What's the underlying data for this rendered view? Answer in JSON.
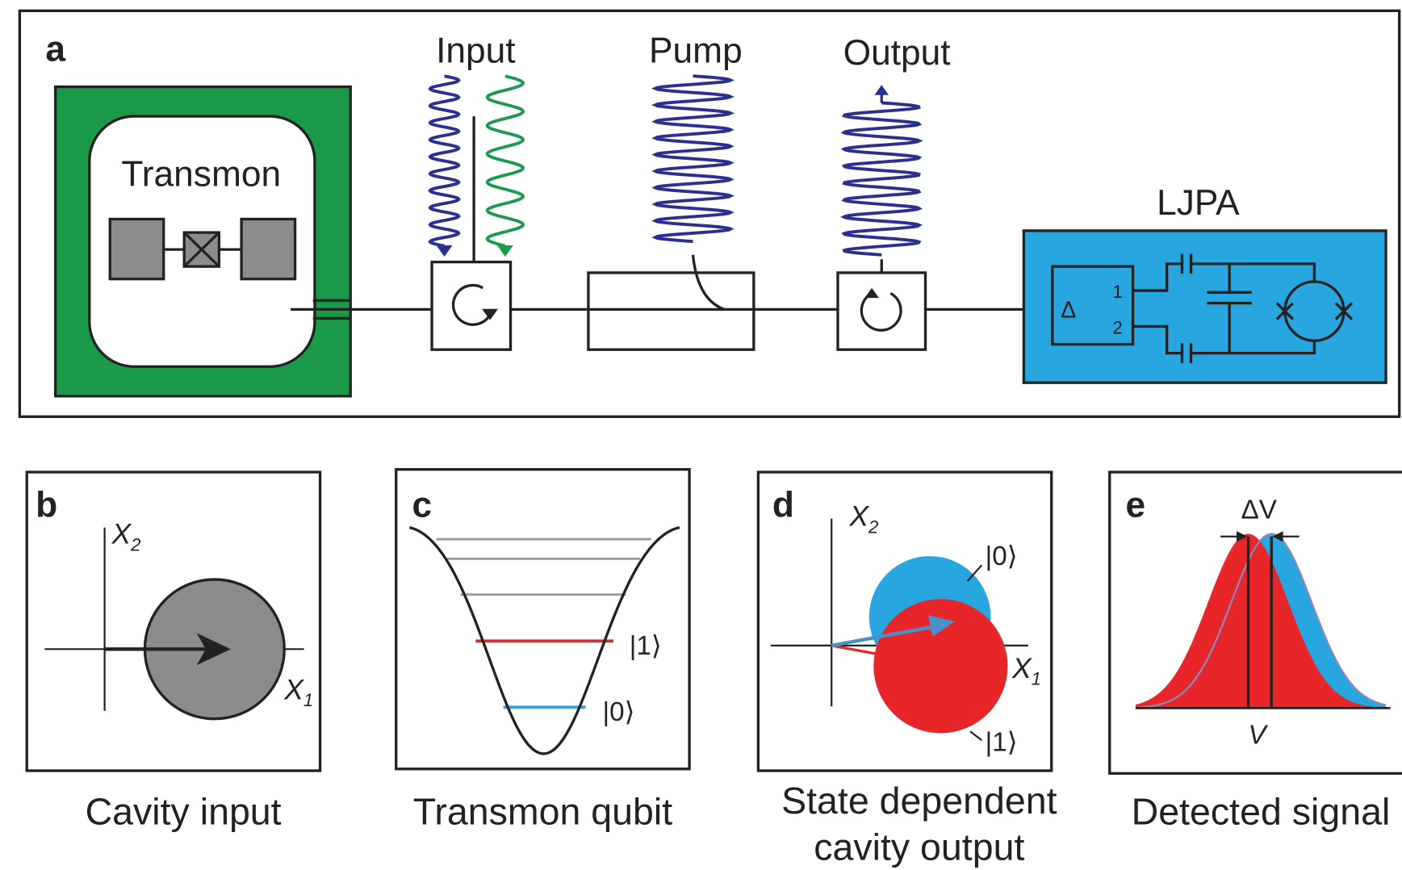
{
  "panel_a": {
    "label": "a",
    "transmon": "Transmon",
    "input": "Input",
    "pump": "Pump",
    "output": "Output",
    "ljpa": "LJPA",
    "ljpa_delta": "Δ",
    "ljpa_port_1": "1",
    "ljpa_port_2": "2"
  },
  "panel_b": {
    "label": "b",
    "caption": "Cavity input",
    "x2": {
      "symbol": "X",
      "subscript": "2"
    },
    "x1": {
      "symbol": "X",
      "subscript": "1"
    }
  },
  "panel_c": {
    "label": "c",
    "caption": "Transmon qubit",
    "ket_1": "|1⟩",
    "ket_0": "|0⟩"
  },
  "panel_d": {
    "label": "d",
    "caption": [
      "State dependent",
      "cavity output"
    ],
    "x2": {
      "symbol": "X",
      "subscript": "2"
    },
    "x1": {
      "symbol": "X",
      "subscript": "1"
    },
    "ket_0": "|0⟩",
    "ket_1": "|1⟩"
  },
  "panel_e": {
    "label": "e",
    "caption": "Detected signal",
    "delta_v": "ΔV",
    "v": "V"
  }
}
